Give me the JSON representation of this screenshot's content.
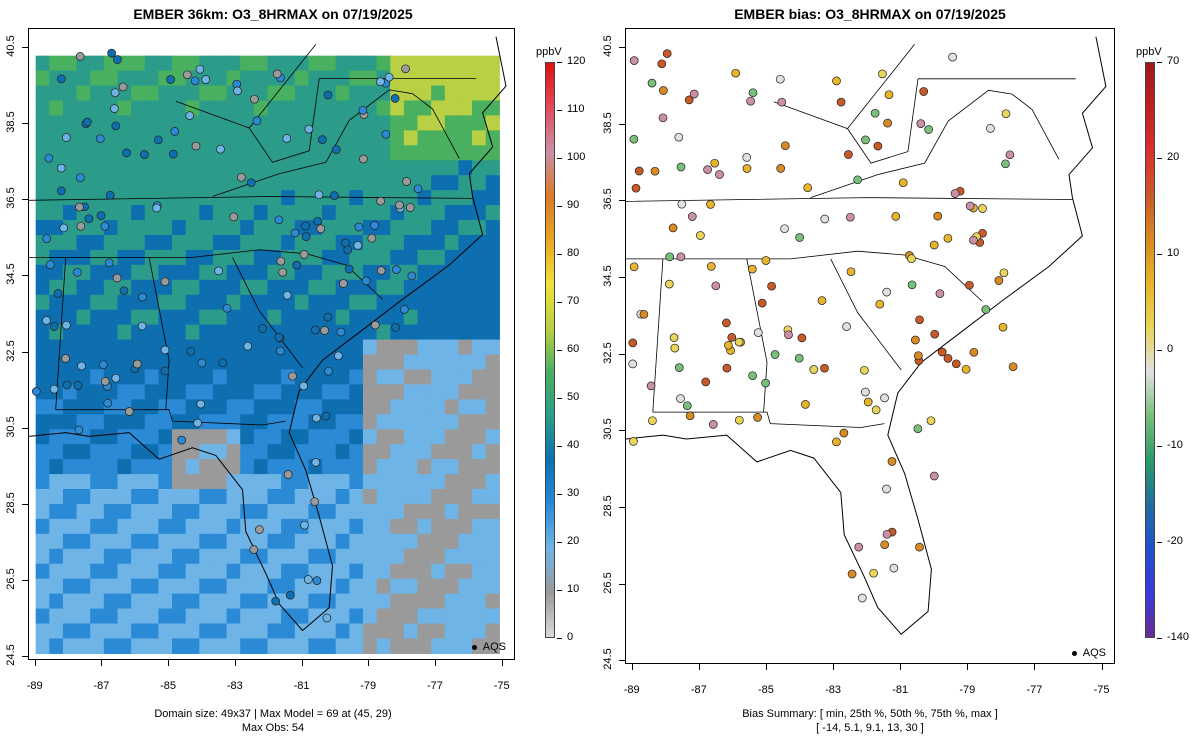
{
  "left_panel": {
    "title": "EMBER 36km: O3_8HRMAX on 07/19/2025",
    "footer_line1": "Domain size: 49x37 | Max Model = 69 at (45, 29)",
    "footer_line2": "Max Obs: 54",
    "legend_label": "AQS",
    "colorbar": {
      "unit": "ppbV",
      "ticks": [
        "120",
        "110",
        "100",
        "90",
        "80",
        "70",
        "60",
        "50",
        "40",
        "30",
        "20",
        "10",
        "0"
      ],
      "range": [
        0,
        120
      ],
      "colors": [
        "#d9d9d9",
        "#9a9a9a",
        "#6fb4e6",
        "#2a8ad6",
        "#0e6fb0",
        "#2c9c8a",
        "#49b060",
        "#b9d044",
        "#f2e03a",
        "#e8a623",
        "#d97a2a",
        "#cc8fa8",
        "#e24a5a",
        "#e01010"
      ]
    }
  },
  "right_panel": {
    "title": "EMBER bias: O3_8HRMAX on 07/19/2025",
    "footer_line1": "Bias Summary: [ min, 25th %, 50th %, 75th %, max ]",
    "footer_line2": "[ -14,   5.1,   9.1,   13,   30 ]",
    "legend_label": "AQS",
    "colorbar": {
      "unit": "ppbV",
      "ticks": [
        "70",
        "20",
        "10",
        "0",
        "-10",
        "-20",
        "-140"
      ],
      "colors": [
        "#6a2c91",
        "#3a3adc",
        "#2050c8",
        "#1f6fa0",
        "#2a9a6a",
        "#78c07a",
        "#e0e0e0",
        "#e8d55a",
        "#e8b42a",
        "#d88a24",
        "#c85a28",
        "#d93030",
        "#c02020",
        "#9a1a1a"
      ]
    }
  },
  "axes": {
    "x_ticks": [
      "-89",
      "-87",
      "-85",
      "-83",
      "-81",
      "-79",
      "-77",
      "-75"
    ],
    "y_ticks": [
      "40.5",
      "38.5",
      "36.5",
      "34.5",
      "32.5",
      "30.5",
      "28.5",
      "26.5",
      "24.5"
    ],
    "lon_range": [
      -89.2,
      -74.6
    ],
    "lat_range": [
      24.4,
      41.0
    ]
  },
  "stats": {
    "domain_size": "49x37",
    "max_model": 69,
    "max_model_cell": [
      45,
      29
    ],
    "max_obs": 54,
    "bias_summary": {
      "min": -14,
      "p25": 5.1,
      "p50": 9.1,
      "p75": 13,
      "max": 30
    }
  }
}
